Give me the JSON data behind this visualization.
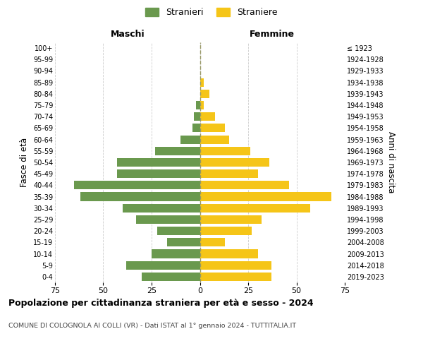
{
  "age_groups": [
    "0-4",
    "5-9",
    "10-14",
    "15-19",
    "20-24",
    "25-29",
    "30-34",
    "35-39",
    "40-44",
    "45-49",
    "50-54",
    "55-59",
    "60-64",
    "65-69",
    "70-74",
    "75-79",
    "80-84",
    "85-89",
    "90-94",
    "95-99",
    "100+"
  ],
  "birth_years": [
    "2019-2023",
    "2014-2018",
    "2009-2013",
    "2004-2008",
    "1999-2003",
    "1994-1998",
    "1989-1993",
    "1984-1988",
    "1979-1983",
    "1974-1978",
    "1969-1973",
    "1964-1968",
    "1959-1963",
    "1954-1958",
    "1949-1953",
    "1944-1948",
    "1939-1943",
    "1934-1938",
    "1929-1933",
    "1924-1928",
    "≤ 1923"
  ],
  "maschi": [
    30,
    38,
    25,
    17,
    22,
    33,
    40,
    62,
    65,
    43,
    43,
    23,
    10,
    4,
    3,
    2,
    0,
    0,
    0,
    0,
    0
  ],
  "femmine": [
    37,
    37,
    30,
    13,
    27,
    32,
    57,
    68,
    46,
    30,
    36,
    26,
    15,
    13,
    8,
    2,
    5,
    2,
    0,
    0,
    0
  ],
  "color_maschi": "#6a994e",
  "color_femmine": "#f5c518",
  "title": "Popolazione per cittadinanza straniera per età e sesso - 2024",
  "subtitle": "COMUNE DI COLOGNOLA AI COLLI (VR) - Dati ISTAT al 1° gennaio 2024 - TUTTITALIA.IT",
  "label_maschi": "Maschi",
  "label_femmine": "Femmine",
  "ylabel_left": "Fasce di età",
  "ylabel_right": "Anni di nascita",
  "legend_maschi": "Stranieri",
  "legend_femmine": "Straniere",
  "xlim": 75,
  "background_color": "#ffffff",
  "grid_color": "#cccccc",
  "zero_line_color": "#999966"
}
